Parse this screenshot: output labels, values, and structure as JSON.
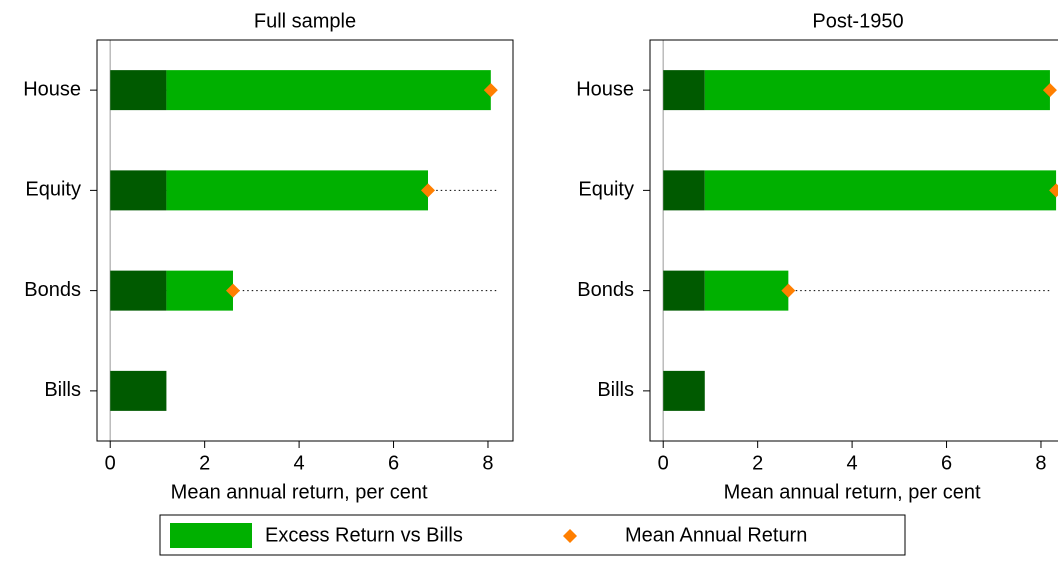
{
  "chart_data": [
    {
      "type": "bar",
      "orientation": "horizontal",
      "stacked": true,
      "title": "Full sample",
      "categories": [
        "House",
        "Equity",
        "Bonds",
        "Bills"
      ],
      "series": [
        {
          "color": "#005a00",
          "values": [
            1.19,
            1.19,
            1.19,
            1.19
          ]
        },
        {
          "name": "Excess Return vs Bills",
          "color": "#00b000",
          "values": [
            6.87,
            5.54,
            1.41,
            null
          ]
        },
        {
          "name": "Mean Annual Return",
          "type": "scatter",
          "marker": "diamond",
          "color": "#ff7f00",
          "values": [
            8.06,
            6.73,
            2.6,
            null
          ]
        }
      ],
      "xlabel": "Mean annual return, per cent",
      "xlim": [
        -0.28,
        8.53
      ],
      "xticks": [
        0,
        2,
        4,
        6,
        8
      ]
    },
    {
      "type": "bar",
      "orientation": "horizontal",
      "stacked": true,
      "title": "Post-1950",
      "categories": [
        "House",
        "Equity",
        "Bonds",
        "Bills"
      ],
      "series": [
        {
          "color": "#005a00",
          "values": [
            0.88,
            0.88,
            0.88,
            0.88
          ]
        },
        {
          "color": "#00b000",
          "values": [
            7.31,
            7.44,
            1.77,
            null
          ]
        },
        {
          "type": "scatter",
          "marker": "diamond",
          "color": "#ff7f00",
          "values": [
            8.19,
            8.32,
            2.65,
            null
          ]
        }
      ],
      "xlabel": "Mean annual return, per cent",
      "xlim": [
        -0.28,
        8.53
      ],
      "xticks": [
        0,
        2,
        4,
        6,
        8
      ]
    }
  ]
}
